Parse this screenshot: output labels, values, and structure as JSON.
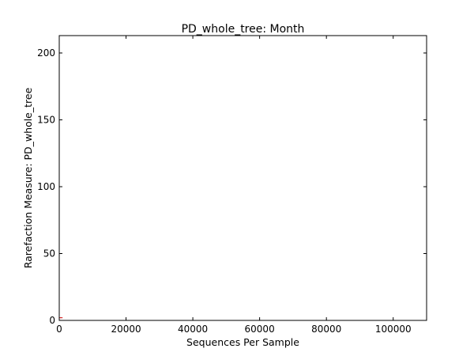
{
  "chart_data": {
    "type": "line",
    "title": "PD_whole_tree: Month",
    "xlabel": "Sequences Per Sample",
    "ylabel": "Rarefaction Measure: PD_whole_tree",
    "xlim": [
      0,
      110000
    ],
    "ylim": [
      0,
      213
    ],
    "xticks": [
      0,
      20000,
      40000,
      60000,
      80000,
      100000
    ],
    "xtick_labels": [
      "0",
      "20000",
      "40000",
      "60000",
      "80000",
      "100000"
    ],
    "yticks": [
      0,
      50,
      100,
      150,
      200
    ],
    "ytick_labels": [
      "0",
      "50",
      "100",
      "150",
      "200"
    ],
    "grid": false,
    "legend": "none",
    "series": [
      {
        "color": "#d62728",
        "x": [
          0,
          1000
        ],
        "y": [
          2,
          2
        ]
      }
    ]
  }
}
